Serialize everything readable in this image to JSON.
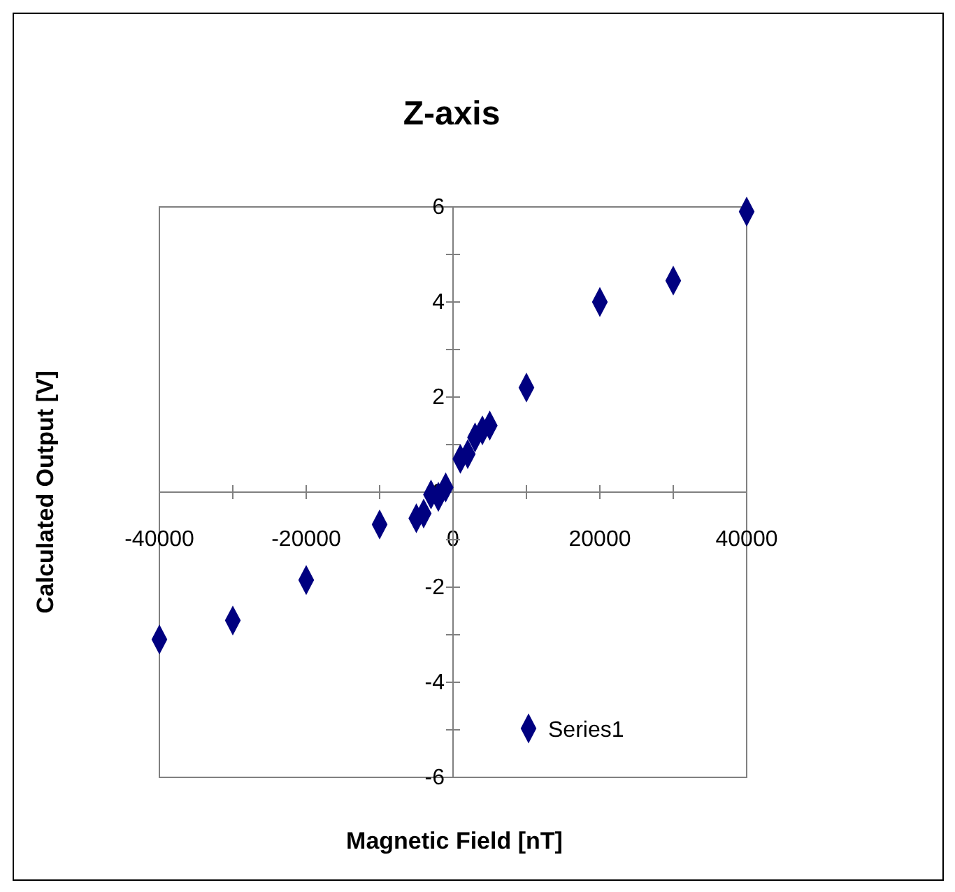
{
  "chart_data": {
    "type": "scatter",
    "title": "Z-axis",
    "xlabel": "Magnetic Field [nT]",
    "ylabel": "Calculated Output [V]",
    "x": [
      -40000,
      -30000,
      -20000,
      -10000,
      -5000,
      -4000,
      -3000,
      -2000,
      -1000,
      1000,
      2000,
      3000,
      4000,
      5000,
      10000,
      20000,
      30000,
      40000
    ],
    "series": [
      {
        "name": "Series1",
        "color": "#000080",
        "values": [
          -3.1,
          -2.7,
          -1.85,
          -0.68,
          -0.55,
          -0.45,
          -0.05,
          -0.1,
          0.1,
          0.7,
          0.8,
          1.15,
          1.3,
          1.4,
          2.2,
          4.0,
          4.45,
          5.9
        ]
      }
    ],
    "xlim": [
      -40000,
      40000
    ],
    "xticks": [
      -40000,
      {
        "value": -30000,
        "label": null
      },
      -20000,
      {
        "value": -10000,
        "label": null
      },
      0,
      {
        "value": 10000,
        "label": null
      },
      20000,
      {
        "value": 30000,
        "label": null
      },
      40000
    ],
    "ylim": [
      -6,
      6
    ],
    "yticks": [
      -6,
      {
        "value": -5,
        "label": null
      },
      -4,
      {
        "value": -3,
        "label": null
      },
      -2,
      {
        "value": -1,
        "label": null
      },
      0,
      {
        "value": 1,
        "label": null
      },
      2,
      {
        "value": 3,
        "label": null
      },
      4,
      {
        "value": 5,
        "label": null
      },
      6
    ],
    "marker": "diamond",
    "legend": "bottom right",
    "grid": false
  }
}
